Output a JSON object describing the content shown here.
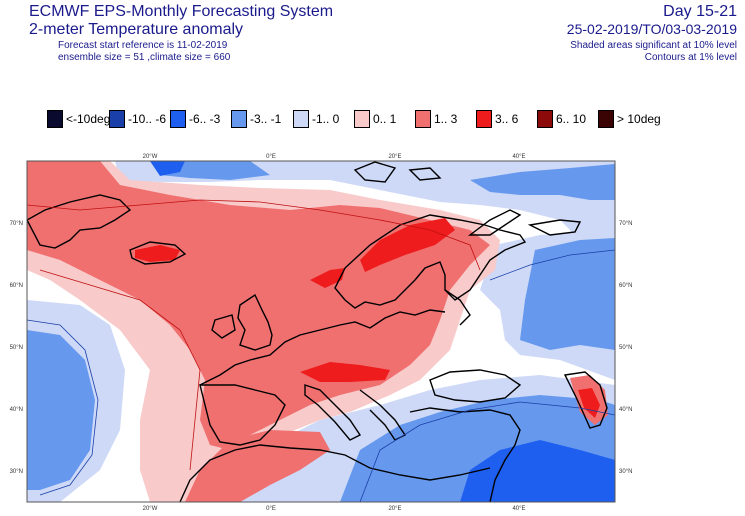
{
  "header": {
    "title_line1": "ECMWF EPS-Monthly Forecasting System",
    "title_line2": "2-meter Temperature anomaly",
    "title_line3": "Forecast start reference is 11-02-2019",
    "title_line4": "ensemble size = 51  ,climate size = 660",
    "right_line1": "Day 15-21",
    "right_line2": "25-02-2019/TO/03-03-2019",
    "right_line3": "Shaded areas significant at 10% level",
    "right_line4": "Contours at 1% level"
  },
  "legend": {
    "items": [
      {
        "label": "<-10deg",
        "color": "#0a0a2e"
      },
      {
        "label": "-10.. -6",
        "color": "#1a3fa8"
      },
      {
        "label": "-6.. -3",
        "color": "#1f5ff0"
      },
      {
        "label": "-3.. -1",
        "color": "#6699ee"
      },
      {
        "label": "-1.. 0",
        "color": "#cdd9f7"
      },
      {
        "label": "0.. 1",
        "color": "#f8caca"
      },
      {
        "label": "1.. 3",
        "color": "#f07070"
      },
      {
        "label": "3.. 6",
        "color": "#ee1c1c"
      },
      {
        "label": "6.. 10",
        "color": "#8c0a0a"
      },
      {
        "label": "> 10deg",
        "color": "#3a0404"
      }
    ]
  },
  "map": {
    "lon_labels": [
      "20°W",
      "0°E",
      "20°E",
      "40°E"
    ],
    "lat_labels": [
      "70°N",
      "60°N",
      "50°N",
      "40°N",
      "30°N"
    ]
  }
}
